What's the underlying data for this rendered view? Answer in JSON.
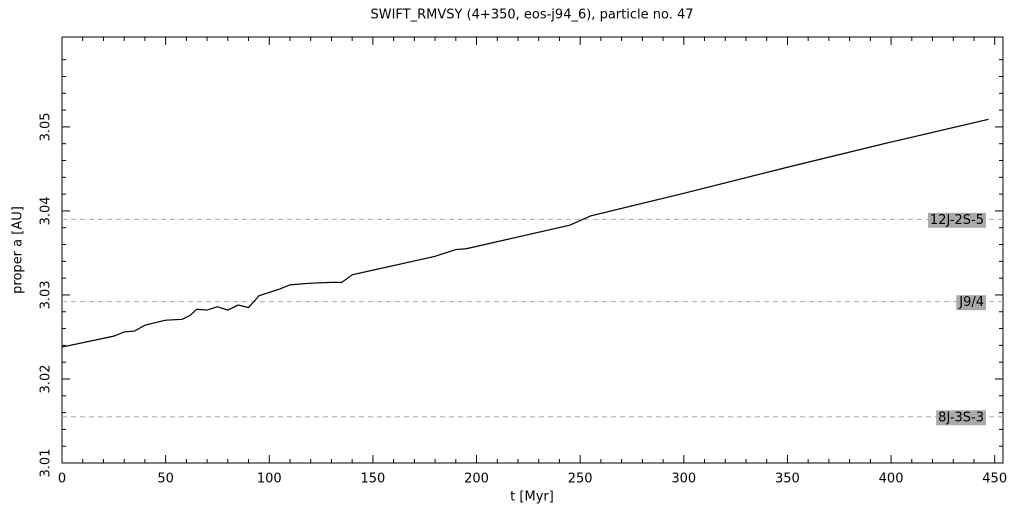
{
  "chart_data": {
    "type": "line",
    "title": "SWIFT_RMVSY (4+350, eos-j94_6), particle no. 47",
    "x_label": "t [Myr]",
    "y_label": "proper a [AU]",
    "xlim": [
      0,
      454
    ],
    "ylim": [
      3.01,
      3.0607
    ],
    "xticks": [
      0,
      50,
      100,
      150,
      200,
      250,
      300,
      350,
      400,
      450
    ],
    "yticks": [
      3.01,
      3.02,
      3.03,
      3.04,
      3.05
    ],
    "series": [
      {
        "name": "proper a",
        "color": "#000000",
        "x": [
          0,
          25,
          30,
          35,
          40,
          50,
          58,
          62,
          65,
          70,
          75,
          80,
          85,
          90,
          95,
          105,
          110,
          120,
          130,
          135,
          140,
          160,
          180,
          190,
          195,
          220,
          245,
          255,
          300,
          350,
          400,
          447
        ],
        "values": [
          3.0238,
          3.0251,
          3.0256,
          3.0257,
          3.0264,
          3.027,
          3.0271,
          3.0276,
          3.0283,
          3.0282,
          3.0286,
          3.0282,
          3.0288,
          3.0285,
          3.0299,
          3.0307,
          3.0312,
          3.0314,
          3.0315,
          3.0315,
          3.0324,
          3.0335,
          3.0346,
          3.0354,
          3.0355,
          3.0369,
          3.0383,
          3.0394,
          3.0421,
          3.0452,
          3.0482,
          3.0509
        ]
      }
    ],
    "reference_lines": [
      {
        "label": "12J-2S-5",
        "value": 3.039
      },
      {
        "label": "J9/4",
        "value": 3.0292
      },
      {
        "label": "8J-3S-3",
        "value": 3.0155
      }
    ]
  }
}
